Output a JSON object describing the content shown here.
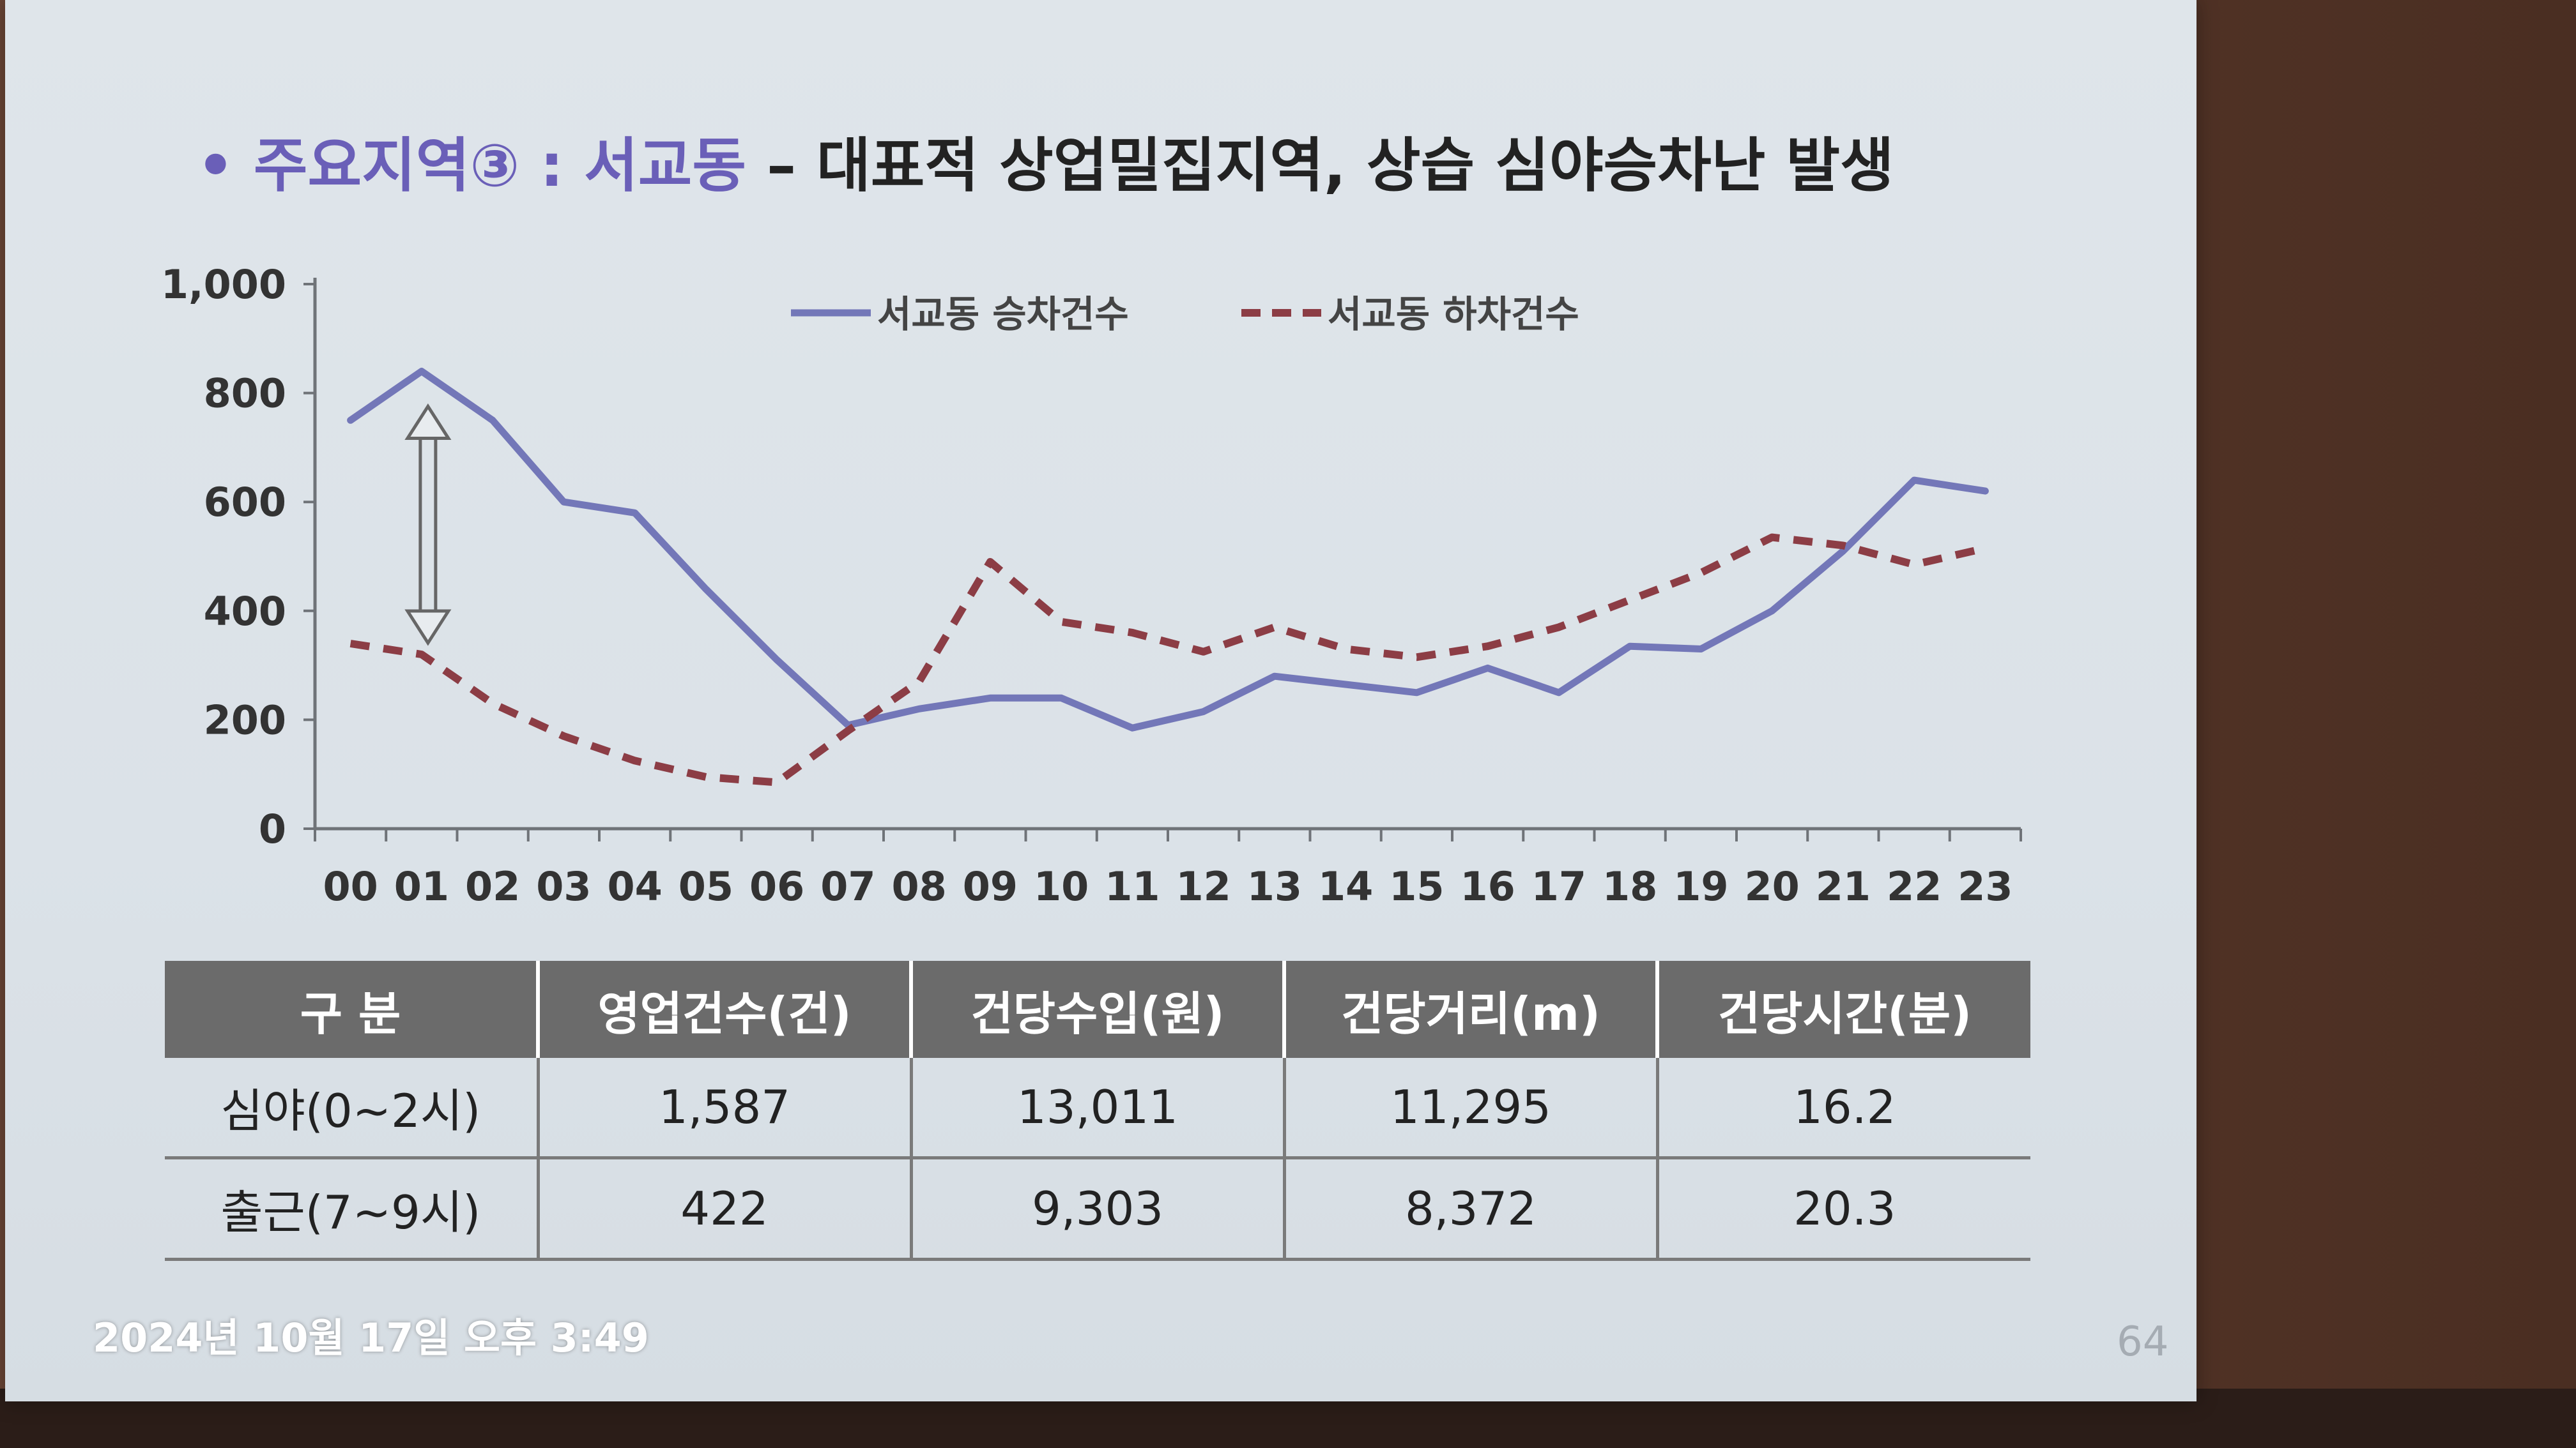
{
  "slide": {
    "bullet": "•",
    "title_part1": "주요지역③ : 서교동",
    "title_part2": " – 대표적 상업밀집지역, 상습 심야승차난 발생",
    "page_number": "64"
  },
  "timestamp": "2024년 10월 17일 오후 3:49",
  "colors": {
    "boarding_line": "#7377b8",
    "alighting_line": "#8c3d45",
    "title_accent": "#6a5fb8",
    "table_header": "#6b6b6b"
  },
  "chart_data": {
    "type": "line",
    "categories": [
      "00",
      "01",
      "02",
      "03",
      "04",
      "05",
      "06",
      "07",
      "08",
      "09",
      "10",
      "11",
      "12",
      "13",
      "14",
      "15",
      "16",
      "17",
      "18",
      "19",
      "20",
      "21",
      "22",
      "23"
    ],
    "series": [
      {
        "name": "서교동 승차건수",
        "style": "solid",
        "values": [
          750,
          840,
          750,
          600,
          580,
          440,
          310,
          190,
          220,
          240,
          240,
          185,
          215,
          280,
          265,
          250,
          295,
          250,
          335,
          330,
          400,
          510,
          640,
          620
        ]
      },
      {
        "name": "서교동 하차건수",
        "style": "dashed",
        "values": [
          340,
          320,
          230,
          170,
          125,
          95,
          85,
          180,
          270,
          490,
          380,
          360,
          325,
          370,
          330,
          315,
          335,
          370,
          420,
          470,
          535,
          520,
          485,
          515
        ]
      }
    ],
    "y_ticks": [
      "0",
      "200",
      "400",
      "600",
      "800",
      "1,000"
    ],
    "ylim": [
      0,
      1000
    ],
    "legend_position": "top-center",
    "grid": false,
    "annotation": "double-headed arrow at 01 between series"
  },
  "table": {
    "headers": [
      "구  분",
      "영업건수(건)",
      "건당수입(원)",
      "건당거리(m)",
      "건당시간(분)"
    ],
    "rows": [
      [
        "심야(0~2시)",
        "1,587",
        "13,011",
        "11,295",
        "16.2"
      ],
      [
        "출근(7~9시)",
        "422",
        "9,303",
        "8,372",
        "20.3"
      ]
    ]
  }
}
